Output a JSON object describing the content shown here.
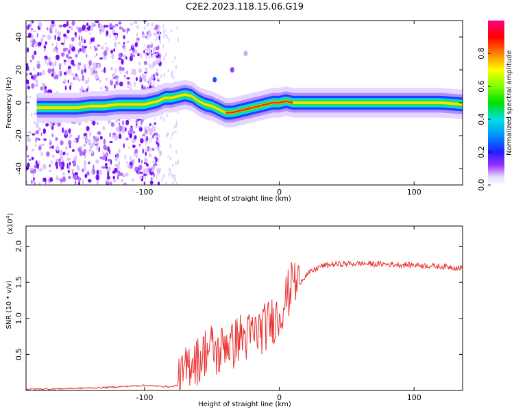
{
  "title": "C2E2.2023.118.15.06.G19",
  "chart_data": [
    {
      "type": "heatmap",
      "name": "spectrogram",
      "xlabel": "Height of straight line (km)",
      "ylabel": "Frequency (Hz)",
      "xlim": [
        -188,
        136
      ],
      "ylim": [
        -50,
        50
      ],
      "x_ticks": [
        -100,
        0,
        100
      ],
      "y_ticks": [
        -40,
        -20,
        0,
        20,
        40
      ],
      "ridge": {
        "x": [
          -180,
          -170,
          -160,
          -150,
          -140,
          -130,
          -120,
          -110,
          -100,
          -95,
          -90,
          -85,
          -80,
          -75,
          -70,
          -65,
          -60,
          -55,
          -50,
          -45,
          -40,
          -35,
          -30,
          -25,
          -20,
          -15,
          -10,
          -5,
          0,
          5,
          10,
          20,
          40,
          60,
          80,
          100,
          120,
          136
        ],
        "y": [
          -3,
          -3,
          -3,
          -3,
          -2,
          -2,
          -1,
          -1,
          -1,
          0,
          1,
          3,
          3,
          4,
          5,
          4,
          1,
          -1,
          -2,
          -4,
          -6,
          -6,
          -5,
          -4,
          -3,
          -2,
          -1,
          0,
          0,
          1,
          0,
          0,
          0,
          0,
          0,
          0,
          0,
          -1
        ]
      },
      "colorbar": {
        "label": "Normalized spectral amplitude",
        "ticks": [
          "0.0",
          "0.2",
          "0.4",
          "0.6",
          "0.8"
        ],
        "range": [
          0,
          1
        ]
      }
    },
    {
      "type": "line",
      "name": "snr",
      "xlabel": "Height of straight line (km)",
      "ylabel": "SNR (10 * v/v)",
      "scale_label": "(x10",
      "scale_exp": "4",
      "scale_close": ")",
      "xlim": [
        -188,
        136
      ],
      "ylim": [
        0,
        2.28
      ],
      "x_ticks": [
        -100,
        0,
        100
      ],
      "y_ticks": [
        0.5,
        1.0,
        1.5,
        2.0
      ],
      "y_tick_labels": [
        "0.5",
        "1.0",
        "1.5",
        "2.0"
      ],
      "color": "#e8302f",
      "series": [
        {
          "name": "SNR",
          "x": [
            -188,
            -170,
            -150,
            -130,
            -110,
            -100,
            -90,
            -80,
            -75,
            -70,
            -65,
            -60,
            -55,
            -50,
            -45,
            -40,
            -35,
            -30,
            -25,
            -20,
            -15,
            -10,
            -5,
            0,
            3,
            6,
            9,
            12,
            15,
            20,
            30,
            40,
            60,
            80,
            100,
            120,
            136
          ],
          "values": [
            0.02,
            0.02,
            0.03,
            0.04,
            0.06,
            0.07,
            0.06,
            0.05,
            0.08,
            0.25,
            0.45,
            0.4,
            0.55,
            0.6,
            0.48,
            0.7,
            0.6,
            0.75,
            0.72,
            0.78,
            0.82,
            0.88,
            0.98,
            1.05,
            1.22,
            1.32,
            1.4,
            1.38,
            1.5,
            1.6,
            1.72,
            1.75,
            1.76,
            1.75,
            1.74,
            1.72,
            1.7
          ]
        }
      ]
    }
  ]
}
